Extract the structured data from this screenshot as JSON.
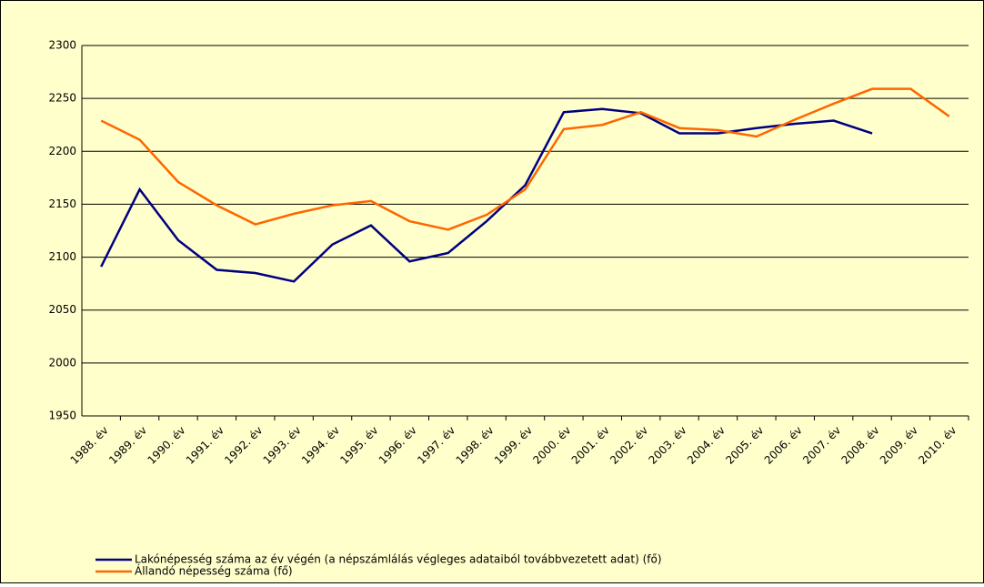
{
  "chart_data": {
    "type": "line",
    "categories": [
      "1988. év",
      "1989. év",
      "1990. év",
      "1991. év",
      "1992. év",
      "1993. év",
      "1994. év",
      "1995. év",
      "1996. év",
      "1997. év",
      "1998. év",
      "1999. év",
      "2000. év",
      "2001. év",
      "2002. év",
      "2003. év",
      "2004. év",
      "2005. év",
      "2006. év",
      "2007. év",
      "2008. év",
      "2009. év",
      "2010. év"
    ],
    "series": [
      {
        "name": "Lakónépesség száma az év végén (a népszámlálás végleges adataiból továbbvezetett adat) (fő)",
        "color": "#000080",
        "values": [
          2091,
          2164,
          2116,
          2088,
          2085,
          2077,
          2112,
          2130,
          2096,
          2104,
          2134,
          2168,
          2237,
          2240,
          2236,
          2217,
          2217,
          2222,
          2226,
          2229,
          2217,
          null,
          null
        ]
      },
      {
        "name": "Állandó népesség száma (fő)",
        "color": "#ff6600",
        "values": [
          2229,
          2211,
          2171,
          2149,
          2131,
          2141,
          2149,
          2153,
          2134,
          2126,
          2140,
          2164,
          2221,
          2225,
          2237,
          2222,
          2220,
          2214,
          2230,
          2245,
          2259,
          2259,
          2233
        ]
      }
    ],
    "ylim": [
      1950,
      2300
    ],
    "yticks": [
      1950,
      2000,
      2050,
      2100,
      2150,
      2200,
      2250,
      2300
    ],
    "grid": true
  }
}
